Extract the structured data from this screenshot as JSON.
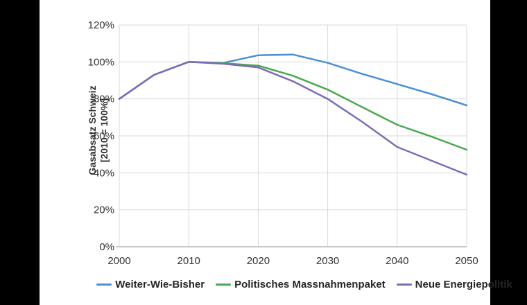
{
  "window": {
    "background_color": "#000000",
    "canvas_color": "#ffffff"
  },
  "chart": {
    "y_axis_title_line1": "Gasabsatz Schweiz",
    "y_axis_title_line2": "[2010 = 100%]"
  },
  "chart_data": {
    "type": "line",
    "title": "",
    "ylabel": "Gasabsatz Schweiz [2010 = 100%]",
    "xlabel": "",
    "grid": true,
    "legend_position": "bottom",
    "xlim": [
      2000,
      2050
    ],
    "ylim": [
      0,
      120
    ],
    "x_ticks": [
      "2000",
      "2010",
      "2020",
      "2030",
      "2040",
      "2050"
    ],
    "x_tick_values": [
      2000,
      2010,
      2020,
      2030,
      2040,
      2050
    ],
    "y_ticks": [
      "120%",
      "100%",
      "80%",
      "60%",
      "40%",
      "20%",
      "0%"
    ],
    "y_tick_values": [
      120,
      100,
      80,
      60,
      40,
      20,
      0
    ],
    "x": [
      2000,
      2005,
      2010,
      2015,
      2020,
      2025,
      2030,
      2035,
      2040,
      2045,
      2050
    ],
    "series": [
      {
        "name": "Weiter-Wie-Bisher",
        "color": "#4A90D5",
        "values": [
          80,
          93,
          100,
          99.5,
          103.6,
          104,
          99.5,
          93.5,
          88,
          82.5,
          76.5
        ]
      },
      {
        "name": "Politisches Massnahmenpaket",
        "color": "#4AA84E",
        "values": [
          80,
          93,
          100,
          99.3,
          98,
          92.5,
          85,
          75.5,
          66,
          59.5,
          52.5
        ]
      },
      {
        "name": "Neue Energiepolitik",
        "color": "#7D6BB8",
        "values": [
          80,
          93,
          100,
          99,
          97,
          89.5,
          80,
          67.5,
          54,
          46.5,
          39
        ]
      }
    ],
    "colors": {
      "gridline": "#d9d9d9",
      "axis_line": "#ababab",
      "tick_text": "#333333"
    }
  }
}
